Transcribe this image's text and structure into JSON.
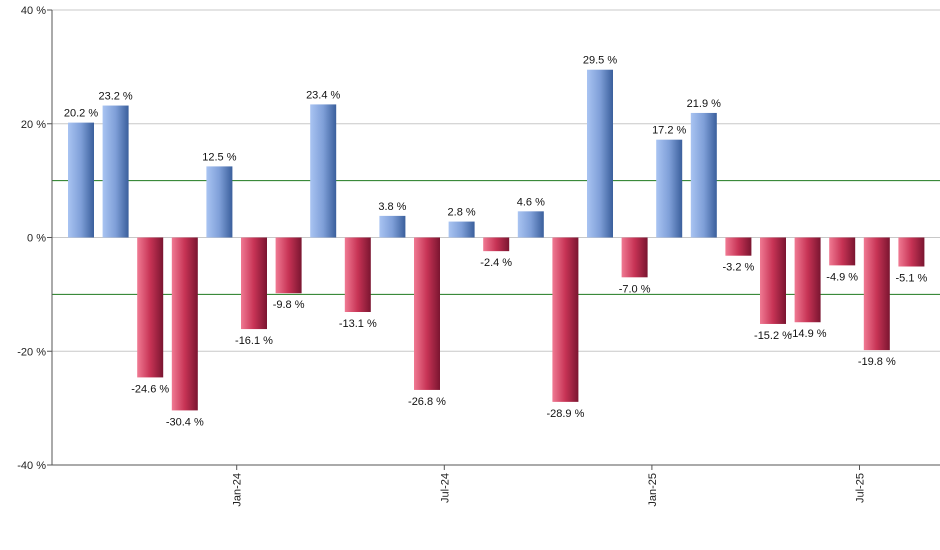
{
  "chart_data": {
    "type": "bar",
    "title": "",
    "xlabel": "",
    "ylabel": "",
    "ylim": [
      -40,
      40
    ],
    "y_ticks": [
      {
        "value": 40,
        "label": "40 %"
      },
      {
        "value": 20,
        "label": "20 %"
      },
      {
        "value": 0,
        "label": "0 %"
      },
      {
        "value": -20,
        "label": "-20 %"
      },
      {
        "value": -40,
        "label": "-40 %"
      }
    ],
    "x_ticks": [
      {
        "after_bar_index": 4,
        "label": "Jan-24"
      },
      {
        "after_bar_index": 10,
        "label": "Jul-24"
      },
      {
        "after_bar_index": 16,
        "label": "Jan-25"
      },
      {
        "after_bar_index": 22,
        "label": "Jul-25"
      }
    ],
    "grid": true,
    "reference_lines": [
      10,
      -10
    ],
    "values": [
      20.2,
      23.2,
      -24.6,
      -30.4,
      12.5,
      -16.1,
      -9.8,
      23.4,
      -13.1,
      3.8,
      -26.8,
      2.8,
      -2.4,
      4.6,
      -28.9,
      29.5,
      -7.0,
      17.2,
      21.9,
      -3.2,
      -15.2,
      -14.9,
      -4.9,
      -19.8,
      -5.1
    ],
    "labels": [
      "20.2 %",
      "23.2 %",
      "-24.6 %",
      "-30.4 %",
      "12.5 %",
      "-16.1 %",
      "-9.8 %",
      "23.4 %",
      "-13.1 %",
      "3.8 %",
      "-26.8 %",
      "2.8 %",
      "-2.4 %",
      "4.6 %",
      "-28.9 %",
      "29.5 %",
      "-7.0 %",
      "17.2 %",
      "21.9 %",
      "-3.2 %",
      "-15.2 %",
      "-14.9 %",
      "-4.9 %",
      "-19.8 %",
      "-5.1 %"
    ],
    "colors": {
      "positive_light": "#a9c4f2",
      "positive_dark": "#3a5f9c",
      "negative_light": "#f07a93",
      "negative_dark": "#7a1530",
      "reference_line": "#1f7a1f",
      "grid": "#c8c8c8",
      "axis": "#555555"
    }
  }
}
